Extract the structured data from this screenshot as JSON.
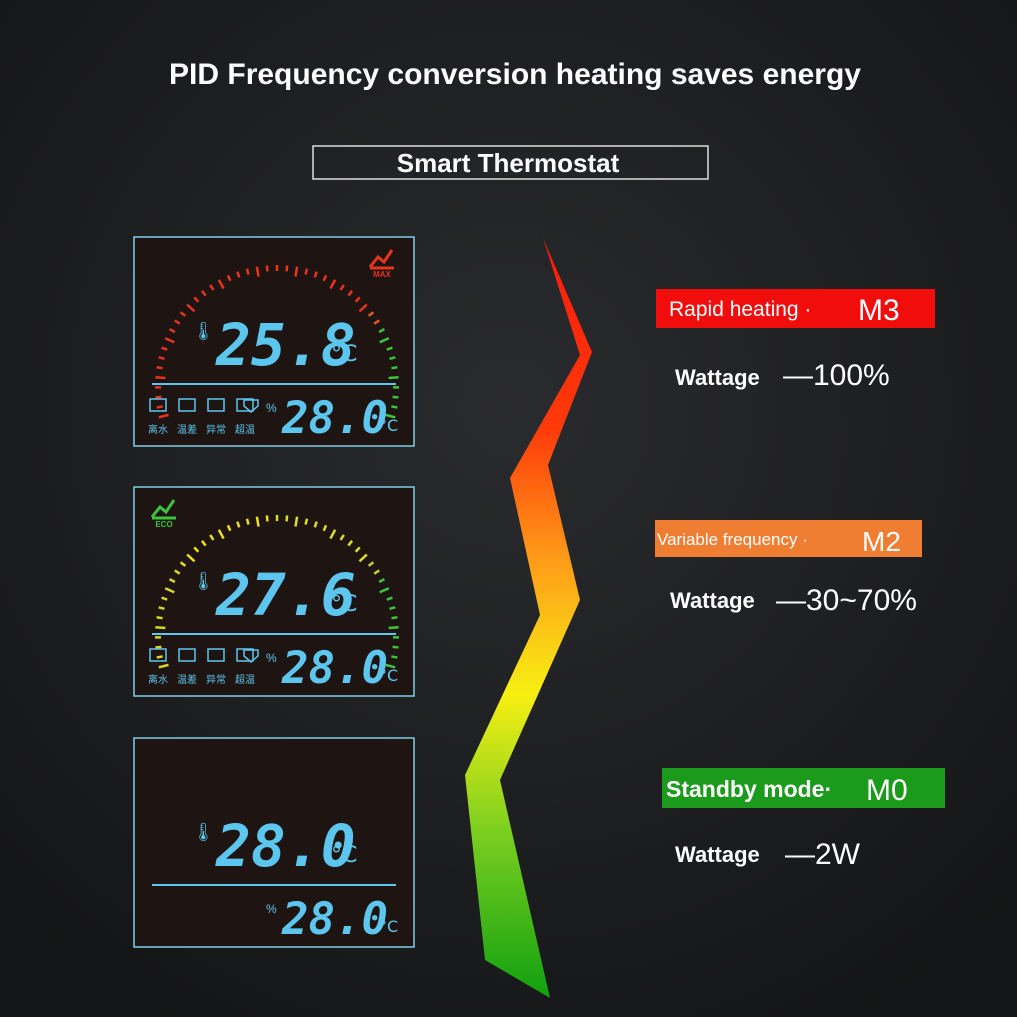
{
  "header": {
    "title": "PID Frequency conversion heating saves energy",
    "subtitle": "Smart Thermostat"
  },
  "panels": [
    {
      "badge": "MAX",
      "current": "25.8",
      "current_unit": "°C",
      "set": "28.0",
      "set_unit": "°C",
      "icons": [
        "离水",
        "温差",
        "异常",
        "超温"
      ]
    },
    {
      "badge": "ECO",
      "current": "27.6",
      "current_unit": "°C",
      "set": "28.0",
      "set_unit": "°C",
      "icons": [
        "离水",
        "温差",
        "异常",
        "超温"
      ]
    },
    {
      "current": "28.0",
      "current_unit": "°C",
      "set": "28.0",
      "set_unit": "°C"
    }
  ],
  "modes": [
    {
      "name": "Rapid heating ·",
      "code": "M3",
      "wattage_label": "Wattage",
      "wattage": "—100%"
    },
    {
      "name": "Variable frequency ·",
      "code": "M2",
      "wattage_label": "Wattage",
      "wattage": "—30~70%"
    },
    {
      "name": "Standby mode·",
      "code": "M0",
      "wattage_label": "Wattage",
      "wattage": "—2W"
    }
  ]
}
